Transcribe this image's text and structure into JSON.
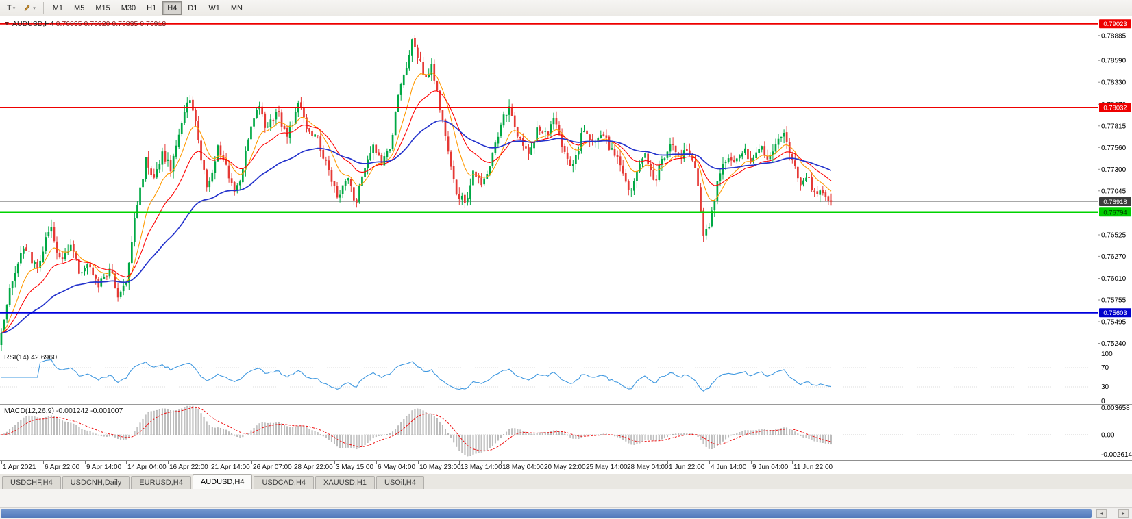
{
  "toolbar": {
    "chart_type_label": "T",
    "timeframes": [
      "M1",
      "M5",
      "M15",
      "M30",
      "H1",
      "H4",
      "D1",
      "W1",
      "MN"
    ],
    "selected_timeframe": "H4"
  },
  "icons": {
    "caret": "▾",
    "scroll_left": "◄",
    "scroll_right": "►"
  },
  "chart": {
    "symbol_title": "AUDUSD,H4",
    "ohlc_text": "0.76835 0.76920 0.76835 0.76918",
    "y_axis_labels": [
      "0.78885",
      "0.78590",
      "0.78330",
      "0.78070",
      "0.77815",
      "0.77560",
      "0.77300",
      "0.77045",
      "0.76525",
      "0.76270",
      "0.76010",
      "0.75755",
      "0.75495",
      "0.75240"
    ],
    "x_axis_labels": [
      "1 Apr 2021",
      "6 Apr 22:00",
      "9 Apr 14:00",
      "14 Apr 04:00",
      "16 Apr 22:00",
      "21 Apr 14:00",
      "26 Apr 07:00",
      "28 Apr 22:00",
      "3 May 15:00",
      "6 May 04:00",
      "10 May 23:00",
      "13 May 14:00",
      "18 May 04:00",
      "20 May 22:00",
      "25 May 14:00",
      "28 May 04:00",
      "1 Jun 22:00",
      "4 Jun 14:00",
      "9 Jun 04:00",
      "11 Jun 22:00"
    ]
  },
  "rsi_panel": {
    "label": "RSI(14) 42.6960",
    "axis_labels": [
      "100",
      "70",
      "30",
      "0"
    ],
    "axis_values": [
      100,
      70,
      30,
      0
    ]
  },
  "macd_panel": {
    "label": "MACD(12,26,9) -0.001242 -0.001007",
    "axis_labels": [
      "0.003658",
      "0.00",
      "-0.002614"
    ],
    "axis_values": [
      0.003658,
      0,
      -0.002614
    ]
  },
  "tabs": [
    "USDCHF,H4",
    "USDCNH,Daily",
    "EURUSD,H4",
    "AUDUSD,H4",
    "USDCAD,H4",
    "XAUUSD,H1",
    "USOil,H4"
  ],
  "active_tab": "AUDUSD,H4",
  "chart_data": {
    "type": "candlestick",
    "symbol": "AUDUSD",
    "timeframe": "H4",
    "candle_count": 300,
    "visible_price_range": [
      0.75155,
      0.7911
    ],
    "current_price": 0.76918,
    "colors": {
      "bull": "#00a844",
      "bear": "#e53935",
      "ma_fast": "#ff9900",
      "ma_mid": "#ff0000",
      "ma_slow": "#2433cc",
      "rsi_line": "#3f98e0",
      "macd_hist_fill": "#c4c4c4",
      "macd_hist_stroke": "#9a9a9a",
      "macd_signal": "#ee1111",
      "current_price_line": "#a8a8a8"
    },
    "indicators": {
      "moving_average_periods": [
        10,
        21,
        55
      ],
      "rsi_period": 14,
      "macd_params": [
        12,
        26,
        9
      ],
      "rsi_current": 42.696,
      "macd_current": -0.001242,
      "macd_signal_current": -0.001007
    },
    "horizontal_levels": [
      {
        "name": "resistance-line-1",
        "price": 0.79023,
        "line_color": "#ee0000",
        "line_width": 2,
        "box_color": "#ee0000",
        "text_color": "#ffffff",
        "label": "0.79023"
      },
      {
        "name": "resistance-line-2",
        "price": 0.78032,
        "line_color": "#ee0000",
        "line_width": 2,
        "box_color": "#ee0000",
        "text_color": "#ffffff",
        "label": "0.78032"
      },
      {
        "name": "current-price-line",
        "price": 0.76918,
        "line_color": "#a8a8a8",
        "line_width": 1,
        "box_color": "#3c3c3c",
        "text_color": "#ffffff",
        "label": "0.76918"
      },
      {
        "name": "support-line-green",
        "price": 0.76794,
        "line_color": "#00d300",
        "line_width": 2.5,
        "box_color": "#00cc00",
        "text_color": "#003300",
        "label": "0.76794"
      },
      {
        "name": "support-line-blue",
        "price": 0.75603,
        "line_color": "#0000dd",
        "line_width": 2,
        "box_color": "#0000cc",
        "text_color": "#ffffff",
        "label": "0.75603"
      }
    ],
    "price_path": [
      [
        0,
        0.7528
      ],
      [
        2,
        0.756
      ],
      [
        5,
        0.76
      ],
      [
        9,
        0.7638
      ],
      [
        14,
        0.7612
      ],
      [
        17,
        0.765
      ],
      [
        19,
        0.7662
      ],
      [
        22,
        0.7618
      ],
      [
        26,
        0.764
      ],
      [
        29,
        0.7606
      ],
      [
        32,
        0.7618
      ],
      [
        36,
        0.7592
      ],
      [
        40,
        0.7612
      ],
      [
        43,
        0.7576
      ],
      [
        46,
        0.76
      ],
      [
        49,
        0.7676
      ],
      [
        53,
        0.7744
      ],
      [
        56,
        0.7718
      ],
      [
        59,
        0.775
      ],
      [
        62,
        0.7728
      ],
      [
        65,
        0.7778
      ],
      [
        69,
        0.7815
      ],
      [
        72,
        0.7762
      ],
      [
        75,
        0.77
      ],
      [
        79,
        0.7758
      ],
      [
        81,
        0.774
      ],
      [
        85,
        0.7697
      ],
      [
        89,
        0.775
      ],
      [
        93,
        0.7808
      ],
      [
        96,
        0.7778
      ],
      [
        100,
        0.78
      ],
      [
        104,
        0.7768
      ],
      [
        108,
        0.781
      ],
      [
        111,
        0.778
      ],
      [
        115,
        0.7764
      ],
      [
        119,
        0.7726
      ],
      [
        122,
        0.77
      ],
      [
        126,
        0.772
      ],
      [
        128,
        0.7686
      ],
      [
        132,
        0.7734
      ],
      [
        135,
        0.7756
      ],
      [
        138,
        0.7735
      ],
      [
        141,
        0.776
      ],
      [
        144,
        0.7818
      ],
      [
        148,
        0.7868
      ],
      [
        149,
        0.7888
      ],
      [
        151,
        0.786
      ],
      [
        154,
        0.7836
      ],
      [
        156,
        0.7854
      ],
      [
        159,
        0.78
      ],
      [
        162,
        0.7752
      ],
      [
        165,
        0.77
      ],
      [
        168,
        0.769
      ],
      [
        171,
        0.7728
      ],
      [
        174,
        0.771
      ],
      [
        177,
        0.774
      ],
      [
        181,
        0.7786
      ],
      [
        184,
        0.7806
      ],
      [
        187,
        0.777
      ],
      [
        191,
        0.7746
      ],
      [
        194,
        0.778
      ],
      [
        197,
        0.777
      ],
      [
        200,
        0.779
      ],
      [
        204,
        0.775
      ],
      [
        207,
        0.7731
      ],
      [
        210,
        0.7774
      ],
      [
        214,
        0.776
      ],
      [
        217,
        0.7776
      ],
      [
        220,
        0.7756
      ],
      [
        223,
        0.774
      ],
      [
        227,
        0.77
      ],
      [
        230,
        0.7726
      ],
      [
        233,
        0.775
      ],
      [
        236,
        0.7712
      ],
      [
        239,
        0.7744
      ],
      [
        242,
        0.776
      ],
      [
        245,
        0.774
      ],
      [
        248,
        0.7756
      ],
      [
        251,
        0.773
      ],
      [
        254,
        0.765
      ],
      [
        256,
        0.7662
      ],
      [
        259,
        0.772
      ],
      [
        262,
        0.7744
      ],
      [
        265,
        0.7735
      ],
      [
        268,
        0.7754
      ],
      [
        271,
        0.774
      ],
      [
        274,
        0.776
      ],
      [
        277,
        0.7746
      ],
      [
        280,
        0.7762
      ],
      [
        283,
        0.7772
      ],
      [
        286,
        0.774
      ],
      [
        288,
        0.7712
      ],
      [
        291,
        0.7726
      ],
      [
        294,
        0.7696
      ],
      [
        297,
        0.7702
      ],
      [
        299,
        0.76918
      ]
    ]
  }
}
